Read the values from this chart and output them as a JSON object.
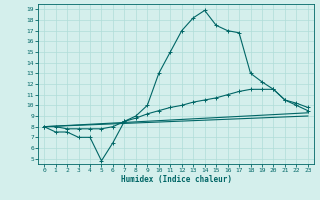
{
  "xlabel": "Humidex (Indice chaleur)",
  "bg_color": "#d4efec",
  "line_color": "#006666",
  "grid_color": "#b0ddd8",
  "xlim": [
    -0.5,
    23.5
  ],
  "ylim": [
    4.5,
    19.5
  ],
  "xticks": [
    0,
    1,
    2,
    3,
    4,
    5,
    6,
    7,
    8,
    9,
    10,
    11,
    12,
    13,
    14,
    15,
    16,
    17,
    18,
    19,
    20,
    21,
    22,
    23
  ],
  "yticks": [
    5,
    6,
    7,
    8,
    9,
    10,
    11,
    12,
    13,
    14,
    15,
    16,
    17,
    18,
    19
  ],
  "curve1_x": [
    0,
    1,
    2,
    3,
    4,
    5,
    6,
    7,
    8,
    9,
    10,
    11,
    12,
    13,
    14,
    15,
    16,
    17,
    18,
    19,
    20,
    21,
    22,
    23
  ],
  "curve1_y": [
    8.0,
    7.5,
    7.5,
    7.0,
    7.0,
    4.8,
    6.5,
    8.5,
    9.0,
    10.0,
    13.0,
    15.0,
    17.0,
    18.2,
    18.9,
    17.5,
    17.0,
    16.8,
    13.0,
    12.2,
    11.5,
    10.5,
    10.0,
    9.5
  ],
  "curve2_x": [
    0,
    1,
    2,
    3,
    4,
    5,
    6,
    7,
    8,
    9,
    10,
    11,
    12,
    13,
    14,
    15,
    16,
    17,
    18,
    19,
    20,
    21,
    22,
    23
  ],
  "curve2_y": [
    8.0,
    8.0,
    7.8,
    7.8,
    7.8,
    7.8,
    8.0,
    8.5,
    8.8,
    9.2,
    9.5,
    9.8,
    10.0,
    10.3,
    10.5,
    10.7,
    11.0,
    11.3,
    11.5,
    11.5,
    11.5,
    10.5,
    10.2,
    9.8
  ],
  "curve3_x": [
    0,
    23
  ],
  "curve3_y": [
    8.0,
    9.3
  ],
  "curve4_x": [
    0,
    23
  ],
  "curve4_y": [
    8.0,
    9.0
  ]
}
